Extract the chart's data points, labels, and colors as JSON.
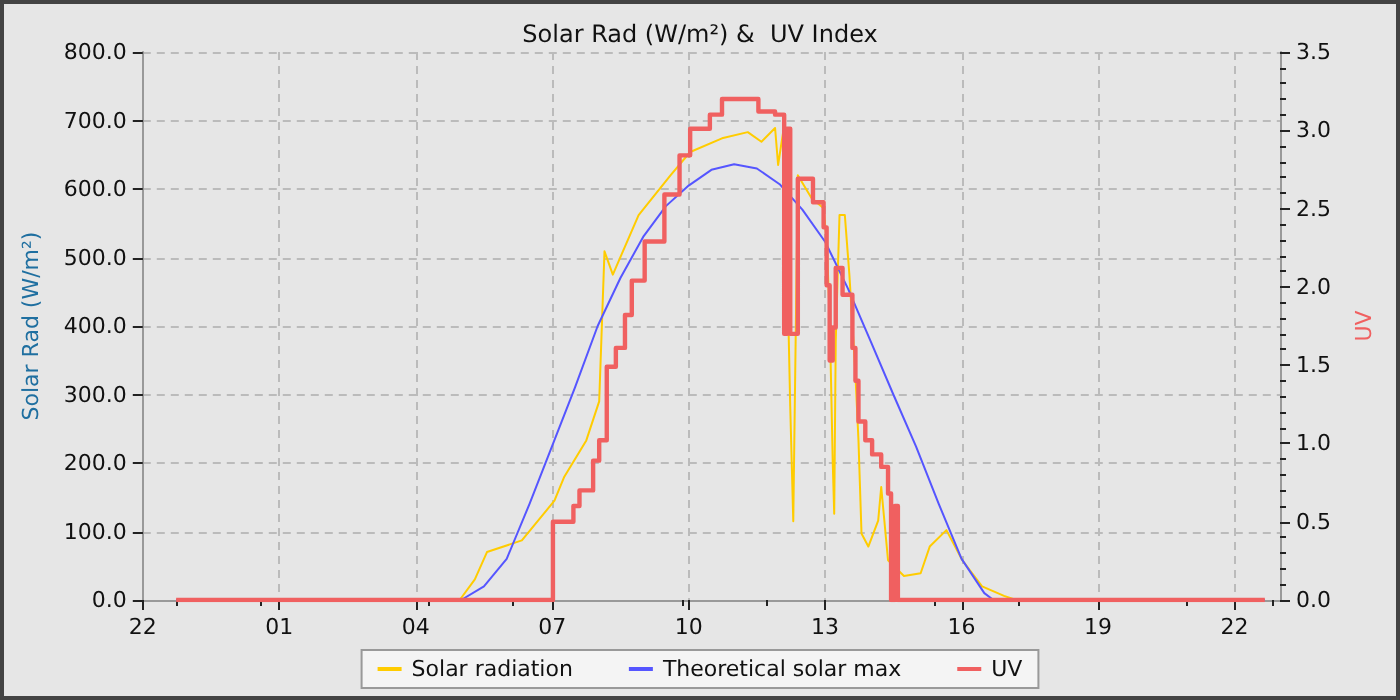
{
  "chart_data": {
    "type": "line",
    "title": "Solar Rad (W/m²) &  UV Index",
    "ylabel": "Solar Rad (W/m²)",
    "y2label": "UV",
    "xlim": [
      "--01-01T22:00",
      "--01-02T23:00"
    ],
    "xticks": [
      {
        "value": "--01-01T22:00",
        "label": "22"
      },
      {
        "value": "--01-02T01:00",
        "label": "01"
      },
      {
        "value": "--01-02T04:00",
        "label": "04"
      },
      {
        "value": "--01-02T07:00",
        "label": "07"
      },
      {
        "value": "--01-02T10:00",
        "label": "10"
      },
      {
        "value": "--01-02T13:00",
        "label": "13"
      },
      {
        "value": "--01-02T16:00",
        "label": "16"
      },
      {
        "value": "--01-02T19:00",
        "label": "19"
      },
      {
        "value": "--01-02T22:00",
        "label": "22"
      }
    ],
    "ylim": [
      0,
      800
    ],
    "yticks": [
      {
        "value": 0,
        "label": "0.0"
      },
      {
        "value": 100,
        "label": "100.0"
      },
      {
        "value": 200,
        "label": "200.0"
      },
      {
        "value": 300,
        "label": "300.0"
      },
      {
        "value": 400,
        "label": "400.0"
      },
      {
        "value": 500,
        "label": "500.0"
      },
      {
        "value": 600,
        "label": "600.0"
      },
      {
        "value": 700,
        "label": "700.0"
      },
      {
        "value": 800,
        "label": "800.0"
      }
    ],
    "y2lim": [
      0,
      3.5
    ],
    "y2ticks": [
      {
        "value": 0,
        "label": "0.0"
      },
      {
        "value": 0.5,
        "label": "0.5"
      },
      {
        "value": 1,
        "label": "1.0"
      },
      {
        "value": 1.5,
        "label": "1.5"
      },
      {
        "value": 2,
        "label": "2.0"
      },
      {
        "value": 2.5,
        "label": "2.5"
      },
      {
        "value": 3,
        "label": "3.0"
      },
      {
        "value": 3.5,
        "label": "3.5"
      }
    ],
    "grid": true,
    "legend": "bottom",
    "marker": "none",
    "line_style": "solid",
    "series": [
      {
        "name": "Solar radiation",
        "color": "#ffcc00",
        "x": [
          "--01-01T22:44",
          "--01-02T04:58",
          "--01-02T05:18",
          "--01-02T05:34",
          "--01-02T06:20",
          "--01-02T07:03",
          "--01-02T07:16",
          "--01-02T07:45",
          "--01-02T08:02",
          "--01-02T08:09",
          "--01-02T08:20",
          "--01-02T08:54",
          "--01-02T09:36",
          "--01-02T10:02",
          "--01-02T10:44",
          "--01-02T11:18",
          "--01-02T11:36",
          "--01-02T11:54",
          "--01-02T11:58",
          "--01-02T12:06",
          "--01-02T12:14",
          "--01-02T12:18",
          "--01-02T12:24",
          "--01-02T12:42",
          "--01-02T12:58",
          "--01-02T13:02",
          "--01-02T13:06",
          "--01-02T13:10",
          "--01-02T13:12",
          "--01-02T13:14",
          "--01-02T13:19",
          "--01-02T13:26",
          "--01-02T13:32",
          "--01-02T13:40",
          "--01-02T13:44",
          "--01-02T13:48",
          "--01-02T13:57",
          "--01-02T14:10",
          "--01-02T14:14",
          "--01-02T14:23",
          "--01-02T14:44",
          "--01-02T15:06",
          "--01-02T15:18",
          "--01-02T15:40",
          "--01-02T16:01",
          "--01-02T16:27",
          "--01-02T16:56",
          "--01-02T17:12",
          "--01-02T22:40"
        ],
        "values": [
          0,
          0,
          30,
          70,
          87,
          145,
          180,
          233,
          290,
          509,
          475,
          562,
          620,
          654,
          674,
          683,
          669,
          689,
          635,
          693,
          282,
          115,
          620,
          587,
          572,
          523,
          417,
          203,
          126,
          378,
          562,
          562,
          475,
          329,
          233,
          97,
          78,
          116,
          165,
          58,
          35,
          39,
          78,
          102,
          58,
          20,
          6,
          0,
          0
        ]
      },
      {
        "name": "Theoretical solar max",
        "color": "#5555ff",
        "x": [
          "--01-01T22:44",
          "--01-02T05:00",
          "--01-02T05:30",
          "--01-02T06:00",
          "--01-02T06:30",
          "--01-02T07:00",
          "--01-02T07:30",
          "--01-02T08:00",
          "--01-02T08:30",
          "--01-02T09:00",
          "--01-02T09:30",
          "--01-02T10:00",
          "--01-02T10:30",
          "--01-02T11:00",
          "--01-02T11:30",
          "--01-02T12:00",
          "--01-02T12:30",
          "--01-02T13:00",
          "--01-02T13:30",
          "--01-02T14:00",
          "--01-02T14:30",
          "--01-02T15:00",
          "--01-02T15:30",
          "--01-02T16:00",
          "--01-02T16:30",
          "--01-02T16:42",
          "--01-02T22:40"
        ],
        "values": [
          0,
          0,
          20,
          60,
          140,
          225,
          310,
          400,
          470,
          530,
          575,
          605,
          628,
          636,
          630,
          607,
          570,
          523,
          455,
          378,
          300,
          224,
          140,
          60,
          10,
          0,
          0
        ]
      },
      {
        "name": "UV",
        "color": "#f06060",
        "type": "step",
        "axis": "y2",
        "x": [
          "--01-01T22:44",
          "--01-02T07:01",
          "--01-02T07:28",
          "--01-02T07:36",
          "--01-02T07:54",
          "--01-02T08:02",
          "--01-02T08:12",
          "--01-02T08:24",
          "--01-02T08:36",
          "--01-02T08:45",
          "--01-02T09:02",
          "--01-02T09:28",
          "--01-02T09:48",
          "--01-02T10:02",
          "--01-02T10:28",
          "--01-02T10:44",
          "--01-02T11:23",
          "--01-02T11:32",
          "--01-02T11:54",
          "--01-02T12:06",
          "--01-02T12:10",
          "--01-02T12:14",
          "--01-02T12:24",
          "--01-02T12:44",
          "--01-02T12:58",
          "--01-02T13:02",
          "--01-02T13:06",
          "--01-02T13:10",
          "--01-02T13:14",
          "--01-02T13:23",
          "--01-02T13:36",
          "--01-02T13:40",
          "--01-02T13:44",
          "--01-02T13:53",
          "--01-02T14:02",
          "--01-02T14:14",
          "--01-02T14:23",
          "--01-02T14:27",
          "--01-02T14:32",
          "--01-02T14:36",
          "--01-02T22:40"
        ],
        "values": [
          0,
          0.5,
          0.6,
          0.7,
          0.89,
          1.02,
          1.49,
          1.61,
          1.82,
          2.04,
          2.29,
          2.59,
          2.84,
          3.01,
          3.1,
          3.2,
          3.2,
          3.12,
          3.1,
          1.7,
          3.01,
          1.7,
          2.69,
          2.54,
          2.38,
          2.01,
          1.53,
          1.74,
          2.12,
          1.95,
          1.61,
          1.4,
          1.14,
          1.02,
          0.93,
          0.85,
          0.68,
          0,
          0.6,
          0,
          0
        ]
      }
    ]
  }
}
